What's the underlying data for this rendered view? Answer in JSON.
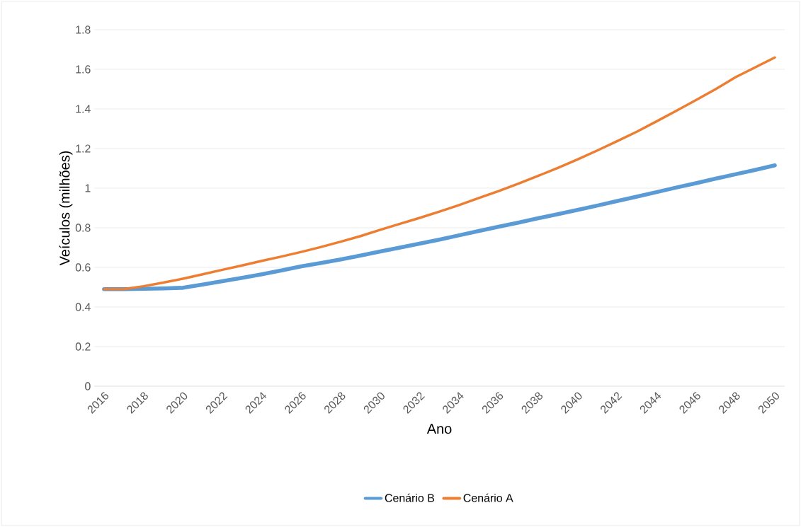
{
  "chart_data": {
    "type": "line",
    "xlabel": "Ano",
    "ylabel": "Veículos (milhões)",
    "categories": [
      "2016",
      null,
      "2018",
      null,
      "2020",
      null,
      "2022",
      null,
      "2024",
      null,
      "2026",
      null,
      "2028",
      null,
      "2030",
      null,
      "2032",
      null,
      "2034",
      null,
      "2036",
      null,
      "2038",
      null,
      "2040",
      null,
      "2042",
      null,
      "2044",
      null,
      "2046",
      null,
      "2048",
      null,
      "2050"
    ],
    "series": [
      {
        "name": "Cenário B",
        "color": "#5b9bd5",
        "values": [
          0.49,
          0.49,
          0.492,
          0.494,
          0.497,
          0.513,
          0.53,
          0.547,
          0.565,
          0.585,
          0.605,
          0.622,
          0.64,
          0.66,
          0.68,
          0.7,
          0.72,
          0.74,
          0.762,
          0.784,
          0.805,
          0.826,
          0.848,
          0.869,
          0.89,
          0.912,
          0.935,
          0.957,
          0.98,
          1.003,
          1.025,
          1.048,
          1.07,
          1.092,
          1.115
        ]
      },
      {
        "name": "Cenário A",
        "color": "#ed7d31",
        "values": [
          0.49,
          0.49,
          0.505,
          0.523,
          0.543,
          0.565,
          0.588,
          0.61,
          0.633,
          0.655,
          0.678,
          0.703,
          0.73,
          0.758,
          0.79,
          0.82,
          0.85,
          0.882,
          0.915,
          0.95,
          0.985,
          1.023,
          1.062,
          1.102,
          1.145,
          1.19,
          1.237,
          1.285,
          1.337,
          1.39,
          1.445,
          1.5,
          1.56,
          1.61,
          1.66
        ]
      }
    ],
    "ylim": [
      0,
      1.8
    ],
    "yticks": [
      0,
      {
        "value": 0.2,
        "label": "0.2"
      },
      {
        "value": 0.4,
        "label": "0.4"
      },
      {
        "value": 0.6,
        "label": "0.6"
      },
      {
        "value": 0.8,
        "label": "0.8"
      },
      1,
      {
        "value": 1.2,
        "label": "1.2"
      },
      {
        "value": 1.4,
        "label": "1.4"
      },
      {
        "value": 1.6,
        "label": "1.6"
      },
      {
        "value": 1.8,
        "label": "1.8"
      }
    ],
    "grid": "y",
    "legend": "bottom",
    "marker": "none",
    "line_style": "solid"
  }
}
